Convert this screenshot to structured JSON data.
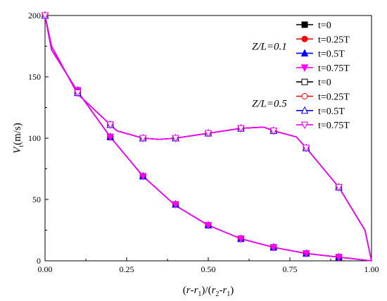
{
  "chart_data": {
    "type": "line",
    "xlabel": "(r-r1)/(r2-r1)",
    "ylabel": "Vt(m/s)",
    "xlim": [
      0,
      1
    ],
    "ylim": [
      0,
      200
    ],
    "x_ticks": [
      "0.00",
      "0.25",
      "0.50",
      "0.75",
      "1.00"
    ],
    "y_ticks": [
      "0",
      "50",
      "100",
      "150",
      "200"
    ],
    "grid": false,
    "legend_position": "top-right",
    "colors": {
      "black": "#000000",
      "red": "#ff0000",
      "blue": "#0000ff",
      "magenta": "#ff00ff"
    },
    "groups": [
      {
        "label": "Z/L=0.1",
        "series": [
          {
            "name": "t=0",
            "marker": "square-filled",
            "color": "#000000"
          },
          {
            "name": "t=0.25T",
            "marker": "circle-filled",
            "color": "#ff0000"
          },
          {
            "name": "t=0.5T",
            "marker": "triangle-up-filled",
            "color": "#0000ff"
          },
          {
            "name": "t=0.75T",
            "marker": "triangle-down-filled",
            "color": "#ff00ff"
          }
        ],
        "x": [
          0.0,
          0.02,
          0.1,
          0.2,
          0.3,
          0.4,
          0.5,
          0.6,
          0.7,
          0.8,
          0.9,
          1.0
        ],
        "y": [
          200,
          172,
          138,
          101,
          69,
          45,
          29,
          18,
          11,
          6,
          3,
          0
        ],
        "marker_x": [
          0.0,
          0.1,
          0.2,
          0.3,
          0.4,
          0.5,
          0.6,
          0.7,
          0.8,
          0.9
        ],
        "marker_y": [
          200,
          139,
          101,
          69,
          46,
          29,
          18,
          11,
          6,
          3
        ]
      },
      {
        "label": "Z/L=0.5",
        "series": [
          {
            "name": "t=0",
            "marker": "square-open",
            "color": "#000000"
          },
          {
            "name": "t=0.25T",
            "marker": "circle-open",
            "color": "#ff0000"
          },
          {
            "name": "t=0.5T",
            "marker": "triangle-up-open",
            "color": "#0000ff"
          },
          {
            "name": "t=0.75T",
            "marker": "triangle-down-open",
            "color": "#ff00ff"
          }
        ],
        "x": [
          0.0,
          0.02,
          0.1,
          0.2,
          0.22,
          0.3,
          0.35,
          0.4,
          0.5,
          0.6,
          0.67,
          0.7,
          0.77,
          0.8,
          0.9,
          0.98,
          1.0
        ],
        "y": [
          200,
          175,
          136,
          111,
          106,
          100,
          99,
          100,
          104,
          108,
          109,
          106,
          101,
          92,
          60,
          25,
          0
        ],
        "marker_x": [
          0.0,
          0.1,
          0.2,
          0.3,
          0.4,
          0.5,
          0.6,
          0.7,
          0.8,
          0.9
        ],
        "marker_y": [
          200,
          137,
          111,
          100,
          100,
          104,
          108,
          106,
          92,
          60
        ]
      }
    ]
  }
}
